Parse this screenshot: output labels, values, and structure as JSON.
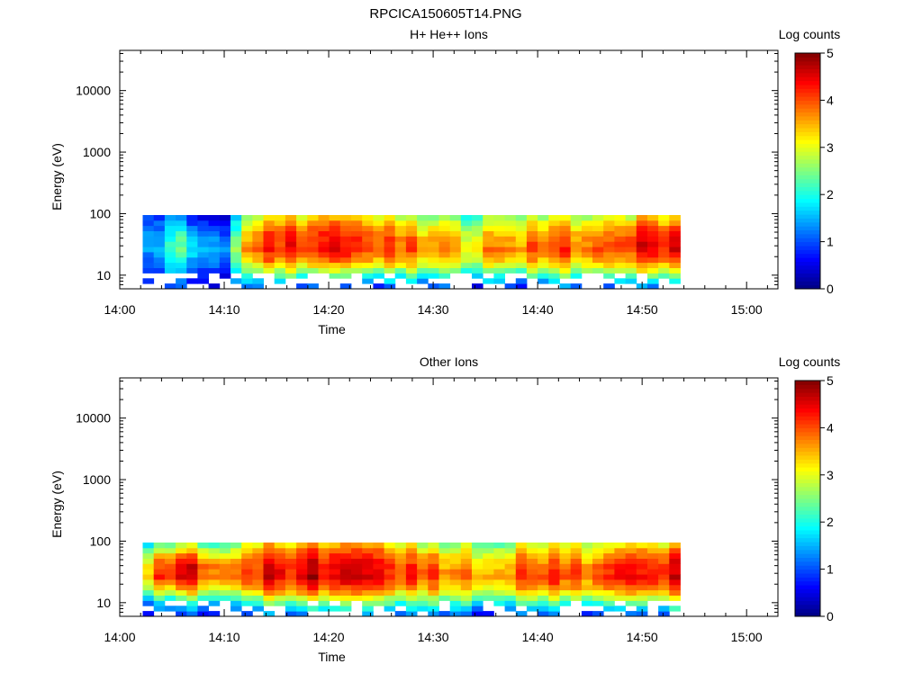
{
  "figure": {
    "title": "RPCICA150605T14.PNG"
  },
  "chart_data": [
    {
      "type": "heatmap",
      "title": "H+ He++ Ions",
      "xlabel": "Time",
      "ylabel": "Energy (eV)",
      "x_scale": "time",
      "y_scale": "log",
      "xlim": [
        "14:00",
        "15:03"
      ],
      "ylim": [
        6,
        45000
      ],
      "x_ticks": [
        "14:00",
        "14:10",
        "14:20",
        "14:30",
        "14:40",
        "14:50",
        "15:00"
      ],
      "y_ticks": [
        "10",
        "100",
        "1000",
        "10000"
      ],
      "colorbar": {
        "label": "Log counts",
        "min": 0,
        "max": 5,
        "ticks": [
          "0",
          "1",
          "2",
          "3",
          "4",
          "5"
        ],
        "colormap": "jet"
      },
      "data_time_range": [
        "14:02",
        "14:53"
      ],
      "data_energy_range_ev": [
        6,
        95
      ],
      "columns": [
        {
          "t": "14:02",
          "levels": [
            0.6,
            0.5,
            0.7,
            1.0,
            1.2,
            0.8,
            0.5
          ]
        },
        {
          "t": "14:04",
          "levels": [
            0.9,
            1.4,
            1.8,
            2.1,
            1.9,
            1.5,
            1.0
          ]
        },
        {
          "t": "14:06",
          "levels": [
            0.7,
            1.2,
            1.7,
            2.2,
            2.0,
            1.4,
            0.8
          ]
        },
        {
          "t": "14:08",
          "levels": [
            0.5,
            1.0,
            1.6,
            1.8,
            1.6,
            1.1,
            0.6
          ]
        },
        {
          "t": "14:10",
          "levels": [
            0.6,
            0.9,
            1.3,
            1.6,
            1.4,
            0.9,
            0.5
          ]
        },
        {
          "t": "14:12",
          "levels": [
            1.3,
            2.4,
            3.5,
            4.0,
            3.8,
            3.4,
            2.6
          ]
        },
        {
          "t": "14:16",
          "levels": [
            1.2,
            2.5,
            3.7,
            4.3,
            4.2,
            3.8,
            3.0
          ]
        },
        {
          "t": "14:20",
          "levels": [
            1.2,
            2.5,
            3.8,
            4.4,
            4.3,
            3.9,
            3.1
          ]
        },
        {
          "t": "14:24",
          "levels": [
            1.1,
            2.4,
            3.6,
            4.2,
            4.1,
            3.7,
            2.9
          ]
        },
        {
          "t": "14:28",
          "levels": [
            1.0,
            2.2,
            3.3,
            3.8,
            3.6,
            3.1,
            2.4
          ]
        },
        {
          "t": "14:32",
          "levels": [
            0.9,
            2.0,
            3.0,
            3.4,
            3.2,
            2.7,
            2.0
          ]
        },
        {
          "t": "14:36",
          "levels": [
            1.0,
            2.1,
            3.2,
            3.6,
            3.4,
            2.9,
            2.2
          ]
        },
        {
          "t": "14:40",
          "levels": [
            1.1,
            2.3,
            3.5,
            4.0,
            3.8,
            3.3,
            2.5
          ]
        },
        {
          "t": "14:44",
          "levels": [
            1.1,
            2.3,
            3.4,
            3.9,
            3.7,
            3.2,
            2.4
          ]
        },
        {
          "t": "14:48",
          "levels": [
            1.2,
            2.5,
            3.7,
            4.2,
            4.1,
            3.6,
            2.7
          ]
        },
        {
          "t": "14:52",
          "levels": [
            1.2,
            2.6,
            3.9,
            4.4,
            4.3,
            3.8,
            2.9
          ]
        }
      ]
    },
    {
      "type": "heatmap",
      "title": "Other Ions",
      "xlabel": "Time",
      "ylabel": "Energy (eV)",
      "x_scale": "time",
      "y_scale": "log",
      "xlim": [
        "14:00",
        "15:03"
      ],
      "ylim": [
        6,
        45000
      ],
      "x_ticks": [
        "14:00",
        "14:10",
        "14:20",
        "14:30",
        "14:40",
        "14:50",
        "15:00"
      ],
      "y_ticks": [
        "10",
        "100",
        "1000",
        "10000"
      ],
      "colorbar": {
        "label": "Log counts",
        "min": 0,
        "max": 5,
        "ticks": [
          "0",
          "1",
          "2",
          "3",
          "4",
          "5"
        ],
        "colormap": "jet"
      },
      "data_time_range": [
        "14:02",
        "14:53"
      ],
      "data_energy_range_ev": [
        6,
        95
      ],
      "columns": [
        {
          "t": "14:02",
          "levels": [
            0.8,
            1.6,
            2.8,
            3.6,
            3.4,
            2.6,
            1.6
          ]
        },
        {
          "t": "14:04",
          "levels": [
            1.0,
            1.9,
            3.4,
            4.3,
            4.2,
            3.3,
            2.0
          ]
        },
        {
          "t": "14:06",
          "levels": [
            1.0,
            2.0,
            3.5,
            4.5,
            4.4,
            3.6,
            2.2
          ]
        },
        {
          "t": "14:08",
          "levels": [
            0.9,
            1.8,
            3.2,
            4.0,
            3.9,
            3.1,
            1.9
          ]
        },
        {
          "t": "14:10",
          "levels": [
            0.9,
            1.7,
            3.0,
            3.8,
            3.6,
            2.8,
            1.8
          ]
        },
        {
          "t": "14:12",
          "levels": [
            1.3,
            2.5,
            3.7,
            4.3,
            4.2,
            3.8,
            2.9
          ]
        },
        {
          "t": "14:16",
          "levels": [
            1.3,
            2.6,
            3.9,
            4.5,
            4.4,
            4.0,
            3.1
          ]
        },
        {
          "t": "14:20",
          "levels": [
            1.3,
            2.6,
            3.9,
            4.5,
            4.4,
            4.0,
            3.1
          ]
        },
        {
          "t": "14:24",
          "levels": [
            1.2,
            2.5,
            3.8,
            4.4,
            4.3,
            3.9,
            3.0
          ]
        },
        {
          "t": "14:28",
          "levels": [
            1.1,
            2.3,
            3.4,
            4.0,
            3.8,
            3.3,
            2.5
          ]
        },
        {
          "t": "14:32",
          "levels": [
            1.0,
            2.1,
            3.1,
            3.6,
            3.4,
            2.9,
            2.2
          ]
        },
        {
          "t": "14:36",
          "levels": [
            1.0,
            2.2,
            3.3,
            3.8,
            3.6,
            3.1,
            2.3
          ]
        },
        {
          "t": "14:40",
          "levels": [
            1.1,
            2.4,
            3.6,
            4.1,
            3.9,
            3.4,
            2.6
          ]
        },
        {
          "t": "14:44",
          "levels": [
            1.1,
            2.3,
            3.5,
            4.0,
            3.8,
            3.3,
            2.5
          ]
        },
        {
          "t": "14:48",
          "levels": [
            1.2,
            2.5,
            3.8,
            4.3,
            4.2,
            3.7,
            2.8
          ]
        },
        {
          "t": "14:52",
          "levels": [
            1.3,
            2.7,
            4.0,
            4.5,
            4.4,
            3.9,
            3.0
          ]
        }
      ]
    }
  ]
}
